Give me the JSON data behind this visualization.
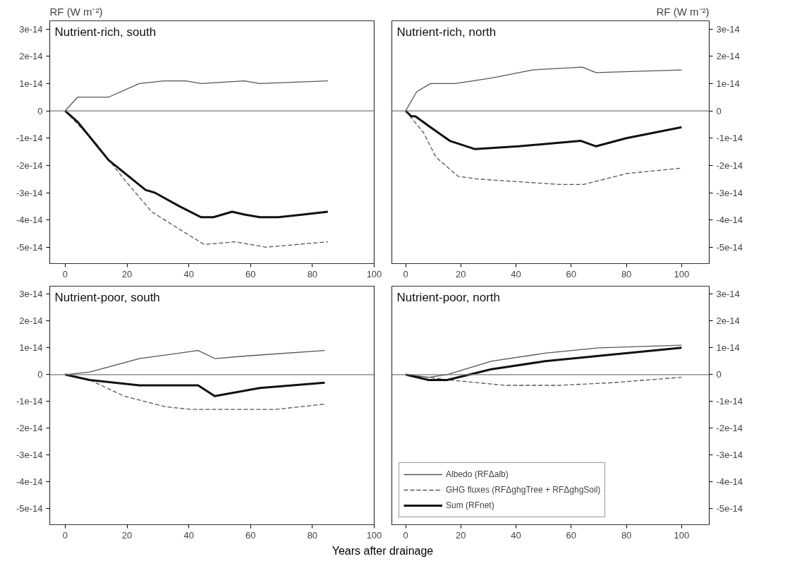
{
  "chart_data": [
    {
      "type": "line",
      "title": "Nutrient-rich, south",
      "ylabel": "RF (W m⁻²)",
      "xlim": [
        -5,
        100
      ],
      "xticks": [
        0,
        20,
        40,
        60,
        80,
        100
      ],
      "ylim": [
        -5.6e-14,
        3.3e-14
      ],
      "yticks": [
        {
          "value": 3e-14,
          "label": "3e-14"
        },
        {
          "value": 2e-14,
          "label": "2e-14"
        },
        {
          "value": 1e-14,
          "label": "1e-14"
        },
        0,
        {
          "value": -1e-14,
          "label": "-1e-14"
        },
        {
          "value": -2e-14,
          "label": "-2e-14"
        },
        {
          "value": -3e-14,
          "label": "-3e-14"
        },
        {
          "value": -4e-14,
          "label": "-4e-14"
        },
        {
          "value": -5e-14,
          "label": "-5e-14"
        }
      ],
      "grid": false,
      "legend": false,
      "ref_lines": [
        {
          "axis": "y",
          "value": 0
        }
      ],
      "series": [
        {
          "color": "#555555",
          "line_style": "solid",
          "x": [
            0,
            4,
            14,
            24,
            32,
            39,
            44,
            58,
            63,
            85
          ],
          "values": [
            0,
            5e-15,
            5e-15,
            1e-14,
            1.1e-14,
            1.1e-14,
            1e-14,
            1.1e-14,
            1e-14,
            1.1e-14
          ]
        },
        {
          "color": "#555555",
          "line_style": "dashed",
          "x": [
            0,
            10,
            19,
            25,
            28,
            35,
            45,
            55,
            65,
            75,
            85
          ],
          "values": [
            0,
            -1.2e-14,
            -2.5e-14,
            -3.3e-14,
            -3.7e-14,
            -4.2e-14,
            -4.9e-14,
            -4.8e-14,
            -5e-14,
            -4.9e-14,
            -4.8e-14
          ]
        },
        {
          "color": "#111111",
          "line_style": "solid",
          "x": [
            0,
            4,
            14,
            26,
            29,
            37,
            44,
            48,
            54,
            58,
            63,
            69,
            77,
            85
          ],
          "values": [
            0,
            -4e-15,
            -1.8e-14,
            -2.9e-14,
            -3e-14,
            -3.5e-14,
            -3.9e-14,
            -3.9e-14,
            -3.7e-14,
            -3.8e-14,
            -3.9e-14,
            -3.9e-14,
            -3.8e-14,
            -3.7e-14
          ]
        }
      ]
    },
    {
      "type": "line",
      "title": "Nutrient-rich, north",
      "y2label": "RF (W m⁻²)",
      "xlim": [
        -5,
        110
      ],
      "xticks": [
        0,
        20,
        40,
        60,
        80,
        100
      ],
      "y2lim": [
        -5.6e-14,
        3.3e-14
      ],
      "y2ticks": [
        {
          "value": 3e-14,
          "label": "3e-14"
        },
        {
          "value": 2e-14,
          "label": "2e-14"
        },
        {
          "value": 1e-14,
          "label": "1e-14"
        },
        0,
        {
          "value": -1e-14,
          "label": "-1e-14"
        },
        {
          "value": -2e-14,
          "label": "-2e-14"
        },
        {
          "value": -3e-14,
          "label": "-3e-14"
        },
        {
          "value": -4e-14,
          "label": "-4e-14"
        },
        {
          "value": -5e-14,
          "label": "-5e-14"
        }
      ],
      "grid": false,
      "legend": false,
      "ref_lines": [
        {
          "axis": "y2",
          "value": 0
        }
      ],
      "series": [
        {
          "color": "#555555",
          "line_style": "solid",
          "axis": "y2",
          "x": [
            0,
            4,
            9,
            18,
            31,
            46,
            64,
            69,
            100
          ],
          "values": [
            0,
            7e-15,
            1e-14,
            1e-14,
            1.2e-14,
            1.5e-14,
            1.6e-14,
            1.4e-14,
            1.5e-14
          ]
        },
        {
          "color": "#555555",
          "line_style": "dashed",
          "axis": "y2",
          "x": [
            0,
            6.5,
            11,
            19,
            26,
            41,
            56,
            64.5,
            80,
            100
          ],
          "values": [
            0,
            -8e-15,
            -1.7e-14,
            -2.4e-14,
            -2.5e-14,
            -2.6e-14,
            -2.7e-14,
            -2.7e-14,
            -2.3e-14,
            -2.1e-14
          ]
        },
        {
          "color": "#111111",
          "line_style": "solid",
          "axis": "y2",
          "x": [
            0,
            2,
            3.5,
            9,
            16,
            25,
            41,
            63.5,
            69,
            80,
            100
          ],
          "values": [
            0,
            -2e-15,
            -2e-15,
            -6e-15,
            -1.1e-14,
            -1.4e-14,
            -1.3e-14,
            -1.1e-14,
            -1.3e-14,
            -1e-14,
            -6e-15
          ]
        }
      ]
    },
    {
      "type": "line",
      "title": "Nutrient-poor, south",
      "xlabel": "Years after drainage",
      "xlim": [
        -5,
        100
      ],
      "xticks": [
        0,
        20,
        40,
        60,
        80,
        100
      ],
      "ylim": [
        -5.6e-14,
        3.3e-14
      ],
      "yticks": [
        {
          "value": 3e-14,
          "label": "3e-14"
        },
        {
          "value": 2e-14,
          "label": "2e-14"
        },
        {
          "value": 1e-14,
          "label": "1e-14"
        },
        0,
        {
          "value": -1e-14,
          "label": "-1e-14"
        },
        {
          "value": -2e-14,
          "label": "-2e-14"
        },
        {
          "value": -3e-14,
          "label": "-3e-14"
        },
        {
          "value": -4e-14,
          "label": "-4e-14"
        },
        {
          "value": -5e-14,
          "label": "-5e-14"
        }
      ],
      "grid": false,
      "legend": false,
      "ref_lines": [
        {
          "axis": "y",
          "value": 0
        }
      ],
      "series": [
        {
          "color": "#555555",
          "line_style": "solid",
          "x": [
            0,
            8,
            24,
            43,
            48.4,
            59,
            84
          ],
          "values": [
            0,
            1e-15,
            6e-15,
            9e-15,
            6e-15,
            7e-15,
            9e-15
          ]
        },
        {
          "color": "#555555",
          "line_style": "dashed",
          "x": [
            0,
            8,
            19,
            32.5,
            41,
            55,
            68,
            84
          ],
          "values": [
            0,
            -2e-15,
            -8e-15,
            -1.2e-14,
            -1.3e-14,
            -1.3e-14,
            -1.3e-14,
            -1.1e-14
          ]
        },
        {
          "color": "#111111",
          "line_style": "solid",
          "x": [
            0,
            8,
            24,
            43,
            48.4,
            63,
            84
          ],
          "values": [
            0,
            -2e-15,
            -4e-15,
            -4e-15,
            -8e-15,
            -5e-15,
            -3e-15
          ]
        }
      ]
    },
    {
      "type": "line",
      "title": "Nutrient-poor, north",
      "xlim": [
        -5,
        110
      ],
      "xticks": [
        0,
        20,
        40,
        60,
        80,
        100
      ],
      "y2lim": [
        -5.6e-14,
        3.3e-14
      ],
      "y2ticks": [
        {
          "value": 3e-14,
          "label": "3e-14"
        },
        {
          "value": 2e-14,
          "label": "2e-14"
        },
        {
          "value": 1e-14,
          "label": "1e-14"
        },
        0,
        {
          "value": -1e-14,
          "label": "-1e-14"
        },
        {
          "value": -2e-14,
          "label": "-2e-14"
        },
        {
          "value": -3e-14,
          "label": "-3e-14"
        },
        {
          "value": -4e-14,
          "label": "-4e-14"
        },
        {
          "value": -5e-14,
          "label": "-5e-14"
        }
      ],
      "grid": false,
      "legend": "bottom left",
      "ref_lines": [
        {
          "axis": "y2",
          "value": 0
        }
      ],
      "series": [
        {
          "name": "Albedo (RFΔalb)",
          "color": "#555555",
          "line_style": "solid",
          "axis": "y2",
          "x": [
            0,
            8.4,
            15,
            31,
            50.5,
            70,
            100
          ],
          "values": [
            0,
            -1e-15,
            0,
            5e-15,
            8e-15,
            1e-14,
            1.1e-14
          ]
        },
        {
          "name": "GHG fluxes (RFΔghgTree + RFΔghgSoil)",
          "color": "#555555",
          "line_style": "dashed",
          "axis": "y2",
          "x": [
            0,
            16,
            36,
            55.5,
            75,
            100
          ],
          "values": [
            0,
            -2e-15,
            -4e-15,
            -4e-15,
            -3e-15,
            -1e-15
          ]
        },
        {
          "name": "Sum (RFnet)",
          "color": "#111111",
          "line_style": "solid",
          "axis": "y2",
          "x": [
            0,
            8.4,
            15,
            31,
            50.5,
            70,
            100
          ],
          "values": [
            0,
            -2e-15,
            -2e-15,
            2e-15,
            5e-15,
            7e-15,
            1e-14
          ]
        }
      ]
    }
  ]
}
